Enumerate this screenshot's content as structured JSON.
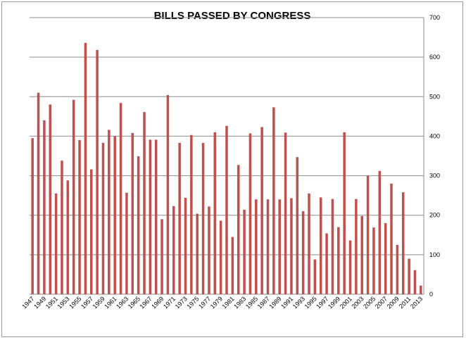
{
  "chart_data": {
    "type": "bar",
    "title": "BILLS PASSED BY CONGRESS",
    "xlabel": "",
    "ylabel": "",
    "ylim": [
      0,
      700
    ],
    "yticks": [
      0,
      100,
      200,
      300,
      400,
      500,
      600,
      700
    ],
    "y_axis_side": "right",
    "grid": true,
    "bar_color": "#c0504d",
    "grid_color": "#8c8c8c",
    "categories": [
      "1947",
      "1948",
      "1949",
      "1950",
      "1951",
      "1952",
      "1953",
      "1954",
      "1955",
      "1956",
      "1957",
      "1958",
      "1959",
      "1960",
      "1961",
      "1962",
      "1963",
      "1964",
      "1965",
      "1966",
      "1967",
      "1968",
      "1969",
      "1970",
      "1971",
      "1972",
      "1973",
      "1974",
      "1975",
      "1976",
      "1977",
      "1978",
      "1979",
      "1980",
      "1981",
      "1982",
      "1983",
      "1984",
      "1985",
      "1986",
      "1987",
      "1988",
      "1989",
      "1990",
      "1991",
      "1992",
      "1993",
      "1994",
      "1995",
      "1996",
      "1997",
      "1998",
      "1999",
      "2000",
      "2001",
      "2002",
      "2003",
      "2004",
      "2005",
      "2006",
      "2007",
      "2008",
      "2009",
      "2010",
      "2011",
      "2012",
      "2013"
    ],
    "xtick_labels": [
      "1947",
      "",
      "1949",
      "",
      "1951",
      "",
      "1953",
      "",
      "1955",
      "",
      "1957",
      "",
      "1959",
      "",
      "1961",
      "",
      "1963",
      "",
      "1965",
      "",
      "1967",
      "",
      "1969",
      "",
      "1971",
      "",
      "1973",
      "",
      "1975",
      "",
      "1977",
      "",
      "1979",
      "",
      "1981",
      "",
      "1983",
      "",
      "1985",
      "",
      "1987",
      "",
      "1989",
      "",
      "1991",
      "",
      "1993",
      "",
      "1995",
      "",
      "1997",
      "",
      "1999",
      "",
      "2001",
      "",
      "2003",
      "",
      "2005",
      "",
      "2007",
      "",
      "2009",
      "",
      "2011",
      "",
      "2013"
    ],
    "values": [
      395,
      510,
      440,
      480,
      255,
      338,
      288,
      492,
      390,
      636,
      316,
      618,
      383,
      416,
      400,
      484,
      257,
      408,
      349,
      461,
      391,
      391,
      190,
      504,
      223,
      383,
      244,
      403,
      204,
      383,
      222,
      410,
      186,
      426,
      145,
      327,
      214,
      407,
      240,
      423,
      240,
      473,
      240,
      409,
      243,
      347,
      210,
      255,
      88,
      245,
      154,
      241,
      170,
      410,
      136,
      241,
      198,
      300,
      169,
      312,
      180,
      280,
      125,
      258,
      90,
      61,
      22
    ]
  }
}
